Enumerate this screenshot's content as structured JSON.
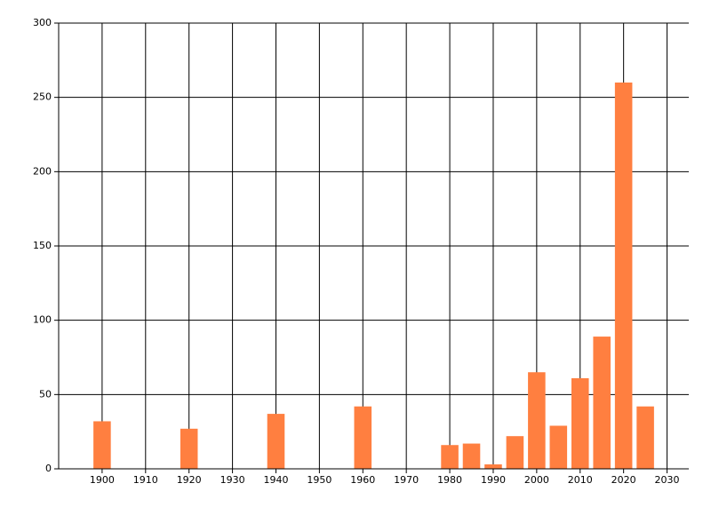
{
  "chart_data": {
    "type": "bar",
    "x": [
      1900,
      1920,
      1940,
      1960,
      1980,
      1985,
      1990,
      1995,
      2000,
      2005,
      2010,
      2015,
      2020,
      2025
    ],
    "values": [
      32,
      27,
      37,
      42,
      16,
      17,
      3,
      22,
      65,
      29,
      61,
      89,
      260,
      42
    ],
    "color": "#ff7f40",
    "xlim": [
      1890,
      2035
    ],
    "xticks": [
      1900,
      1910,
      1920,
      1930,
      1940,
      1950,
      1960,
      1970,
      1980,
      1990,
      2000,
      2010,
      2020,
      2030
    ],
    "ylim": [
      0,
      300
    ],
    "yticks": [
      0,
      50,
      100,
      150,
      200,
      250,
      300
    ],
    "grid": true
  }
}
